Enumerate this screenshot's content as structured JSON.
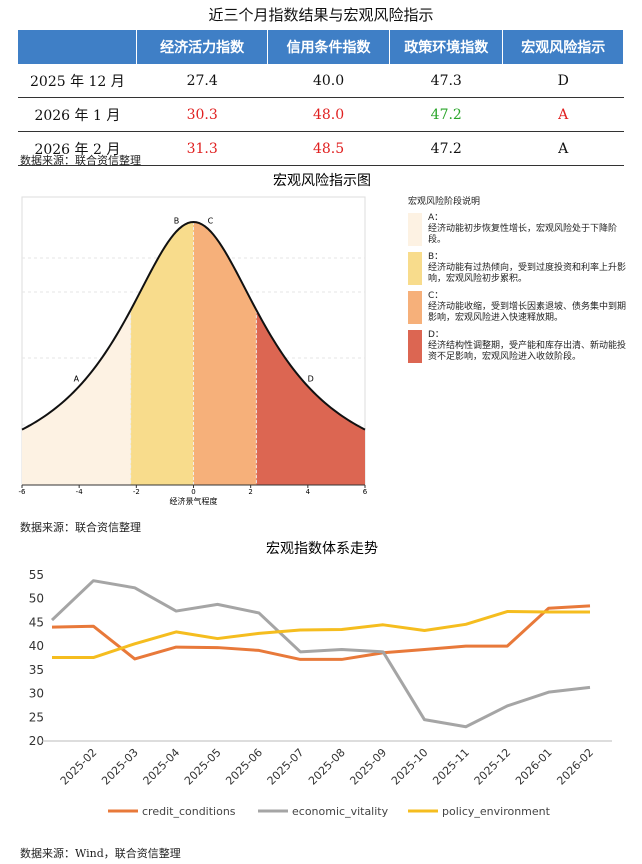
{
  "table": {
    "title": "近三个月指数结果与宏观风险指示",
    "headers": [
      "",
      "经济活力指数",
      "信用条件指数",
      "政策环境指数",
      "宏观风险指示"
    ],
    "rows": [
      [
        "2025 年 12 月",
        "27.4",
        "40.0",
        "47.3",
        "D"
      ],
      [
        "2026 年 1 月",
        "30.3",
        "48.0",
        "47.2",
        "A"
      ],
      [
        "2026 年 2 月",
        "31.3",
        "48.5",
        "47.2",
        "A"
      ]
    ],
    "cell_colors": [
      [
        "#111",
        "#111",
        "#111",
        "#111",
        "#111"
      ],
      [
        "#111",
        "#e02020",
        "#e02020",
        "#2aa52a",
        "#e02020"
      ],
      [
        "#111",
        "#e02020",
        "#e02020",
        "#111",
        "#111"
      ]
    ],
    "source": "数据来源：联合资信整理"
  },
  "chart_data": [
    {
      "type": "bell",
      "title": "宏观风险指示图",
      "xlabel": "经济景气程度",
      "xlim": [
        -6,
        6
      ],
      "xticks": [
        -6,
        -4,
        -2,
        0,
        2,
        4,
        6
      ],
      "regions": [
        {
          "label": "A",
          "range": [
            -6,
            -2.2
          ],
          "color": "#fdf2e3"
        },
        {
          "label": "B",
          "range": [
            -2.2,
            0
          ],
          "color": "#f8dc8c"
        },
        {
          "label": "C",
          "range": [
            0,
            2.2
          ],
          "color": "#f6b07a"
        },
        {
          "label": "D",
          "range": [
            2.2,
            6
          ],
          "color": "#dc6652"
        }
      ],
      "legend_title": "宏观风险阶段说明",
      "legend": [
        {
          "label": "A：",
          "text": "经济动能初步恢复性增长，宏观风险处于下降阶段。"
        },
        {
          "label": "B：",
          "text": "经济动能有过热倾向，受到过度投资和利率上升影响，宏观风险初步累积。"
        },
        {
          "label": "C：",
          "text": "经济动能收缩，受到增长因素退坡、债务集中到期影响，宏观风险进入快速释放期。"
        },
        {
          "label": "D：",
          "text": "经济结构性调整期，受产能和库存出清、新动能投资不足影响，宏观风险进入收敛阶段。"
        }
      ],
      "source": "数据来源：联合资信整理"
    },
    {
      "type": "line",
      "title": "宏观指数体系走势",
      "categories": [
        null,
        "2025-02",
        "2025-03",
        "2025-04",
        "2025-05",
        "2025-06",
        "2025-07",
        "2025-08",
        "2025-09",
        "2025-10",
        "2025-11",
        "2025-12",
        "2026-01",
        "2026-02"
      ],
      "series": [
        {
          "name": "credit_conditions",
          "color": "#e8793a",
          "values": [
            44.0,
            44.2,
            37.3,
            39.8,
            39.7,
            39.1,
            37.2,
            37.2,
            38.6,
            39.3,
            40.0,
            40.0,
            48.0,
            48.5
          ]
        },
        {
          "name": "economic_vitality",
          "color": "#a5a5a5",
          "values": [
            45.5,
            53.8,
            52.3,
            47.4,
            48.8,
            47.0,
            38.8,
            39.3,
            38.8,
            24.5,
            23.0,
            27.4,
            30.3,
            31.3
          ]
        },
        {
          "name": "policy_environment",
          "color": "#f5bd1f",
          "values": [
            37.6,
            37.6,
            40.5,
            43.0,
            41.6,
            42.7,
            43.4,
            43.5,
            44.5,
            43.3,
            44.6,
            47.3,
            47.2,
            47.2
          ]
        }
      ],
      "ylim": [
        20,
        55
      ],
      "yticks": [
        20,
        25,
        30,
        35,
        40,
        45,
        50,
        55
      ],
      "legend": "bottom",
      "source": "数据来源：Wind，联合资信整理"
    }
  ]
}
